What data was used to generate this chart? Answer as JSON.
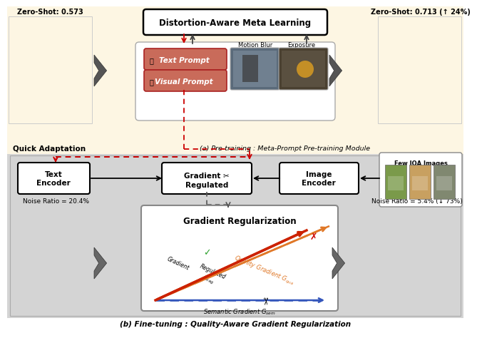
{
  "title_top": "Distortion-Aware Meta Learning",
  "caption_a": "(a) Pre-training : Meta-Prompt Pre-training Module",
  "caption_b": "(b) Fine-tuning : Quality-Aware Gradient Regularization",
  "label_quick_adapt": "Quick Adaptation",
  "scatter1_title": "Zero-Shot: 0.573",
  "scatter2_title": "Zero-Shot: 0.713 (↑ 24%)",
  "scatter3_title": "Noise Ratio = 20.4%",
  "scatter4_title": "Noise Ratio = 5.4% (↓ 73%)",
  "box_text_encoder": "Text\nEncoder",
  "box_gradient": "Gradient ✂\nRegulated",
  "box_image_encoder": "Image\nEncoder",
  "box_few_iqa": "Few IQA Images",
  "box_grad_reg_title": "Gradient Regularization",
  "text_prompt_label": "Text Prompt",
  "visual_prompt_label": "Visual Prompt",
  "motion_blur_label": "Motion Blur",
  "exposure_label": "Exposure",
  "bg_color_top": "#fdf6e3",
  "bg_color_bottom": "#d8d8d8",
  "orange_color": "#d4622a",
  "blue_color": "#3a6fba",
  "black_color": "#1a1a1a",
  "red_dashed_color": "#cc0000"
}
